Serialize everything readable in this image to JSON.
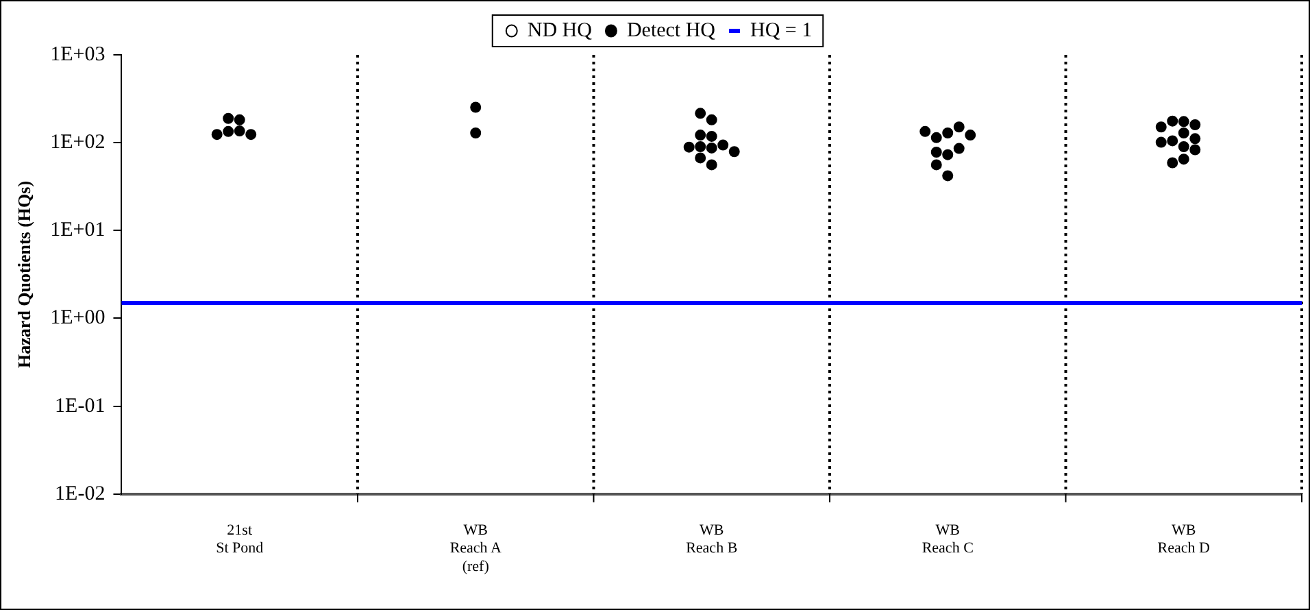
{
  "chart_data": {
    "type": "scatter",
    "ylabel": "Hazard Quotients (HQs)",
    "log": "y",
    "categories": [
      "21st St Pond",
      "WB Reach A (ref)",
      "WB Reach B",
      "WB Reach C",
      "WB Reach D"
    ],
    "ylim": [
      0.01,
      1000
    ],
    "yticks": [
      {
        "value": 0.01,
        "label": "1E-02"
      },
      {
        "value": 0.1,
        "label": "1E-01"
      },
      {
        "value": 1,
        "label": "1E+00"
      },
      {
        "value": 10,
        "label": "1E+01"
      },
      {
        "value": 100,
        "label": "1E+02"
      },
      {
        "value": 1000,
        "label": "1E+03"
      }
    ],
    "series": [
      {
        "name": "ND HQ",
        "color": "#ffffff",
        "marker": "circle",
        "values": [
          null,
          null,
          null,
          null,
          null
        ]
      },
      {
        "name": "Detect HQ",
        "color": "#000000",
        "marker": "circle",
        "x": [
          "21st St Pond",
          "21st St Pond",
          "21st St Pond",
          "21st St Pond",
          "21st St Pond",
          "21st St Pond",
          "WB Reach A (ref)",
          "WB Reach A (ref)",
          "WB Reach B",
          "WB Reach B",
          "WB Reach B",
          "WB Reach B",
          "WB Reach B",
          "WB Reach B",
          "WB Reach B",
          "WB Reach B",
          "WB Reach B",
          "WB Reach B",
          "WB Reach B",
          "WB Reach C",
          "WB Reach C",
          "WB Reach C",
          "WB Reach C",
          "WB Reach C",
          "WB Reach C",
          "WB Reach C",
          "WB Reach C",
          "WB Reach C",
          "WB Reach C",
          "WB Reach D",
          "WB Reach D",
          "WB Reach D",
          "WB Reach D",
          "WB Reach D",
          "WB Reach D",
          "WB Reach D",
          "WB Reach D",
          "WB Reach D",
          "WB Reach D",
          "WB Reach D",
          "WB Reach D"
        ],
        "values": [
          136,
          134,
          124,
          124,
          182,
          189,
          253,
          129,
          182,
          216,
          118,
          122,
          87,
          94,
          90,
          89,
          79,
          67,
          56,
          129,
          114,
          151,
          134,
          122,
          73,
          78,
          86,
          56,
          42,
          174,
          176,
          160,
          129,
          105,
          90,
          65,
          151,
          111,
          101,
          83,
          59
        ]
      }
    ],
    "ref_lines": [
      {
        "axis": "y",
        "value": 1.5,
        "label": "HQ = 1",
        "color": "#0000ff",
        "line_style": "solid"
      }
    ],
    "grid": "x",
    "legend": "top"
  }
}
